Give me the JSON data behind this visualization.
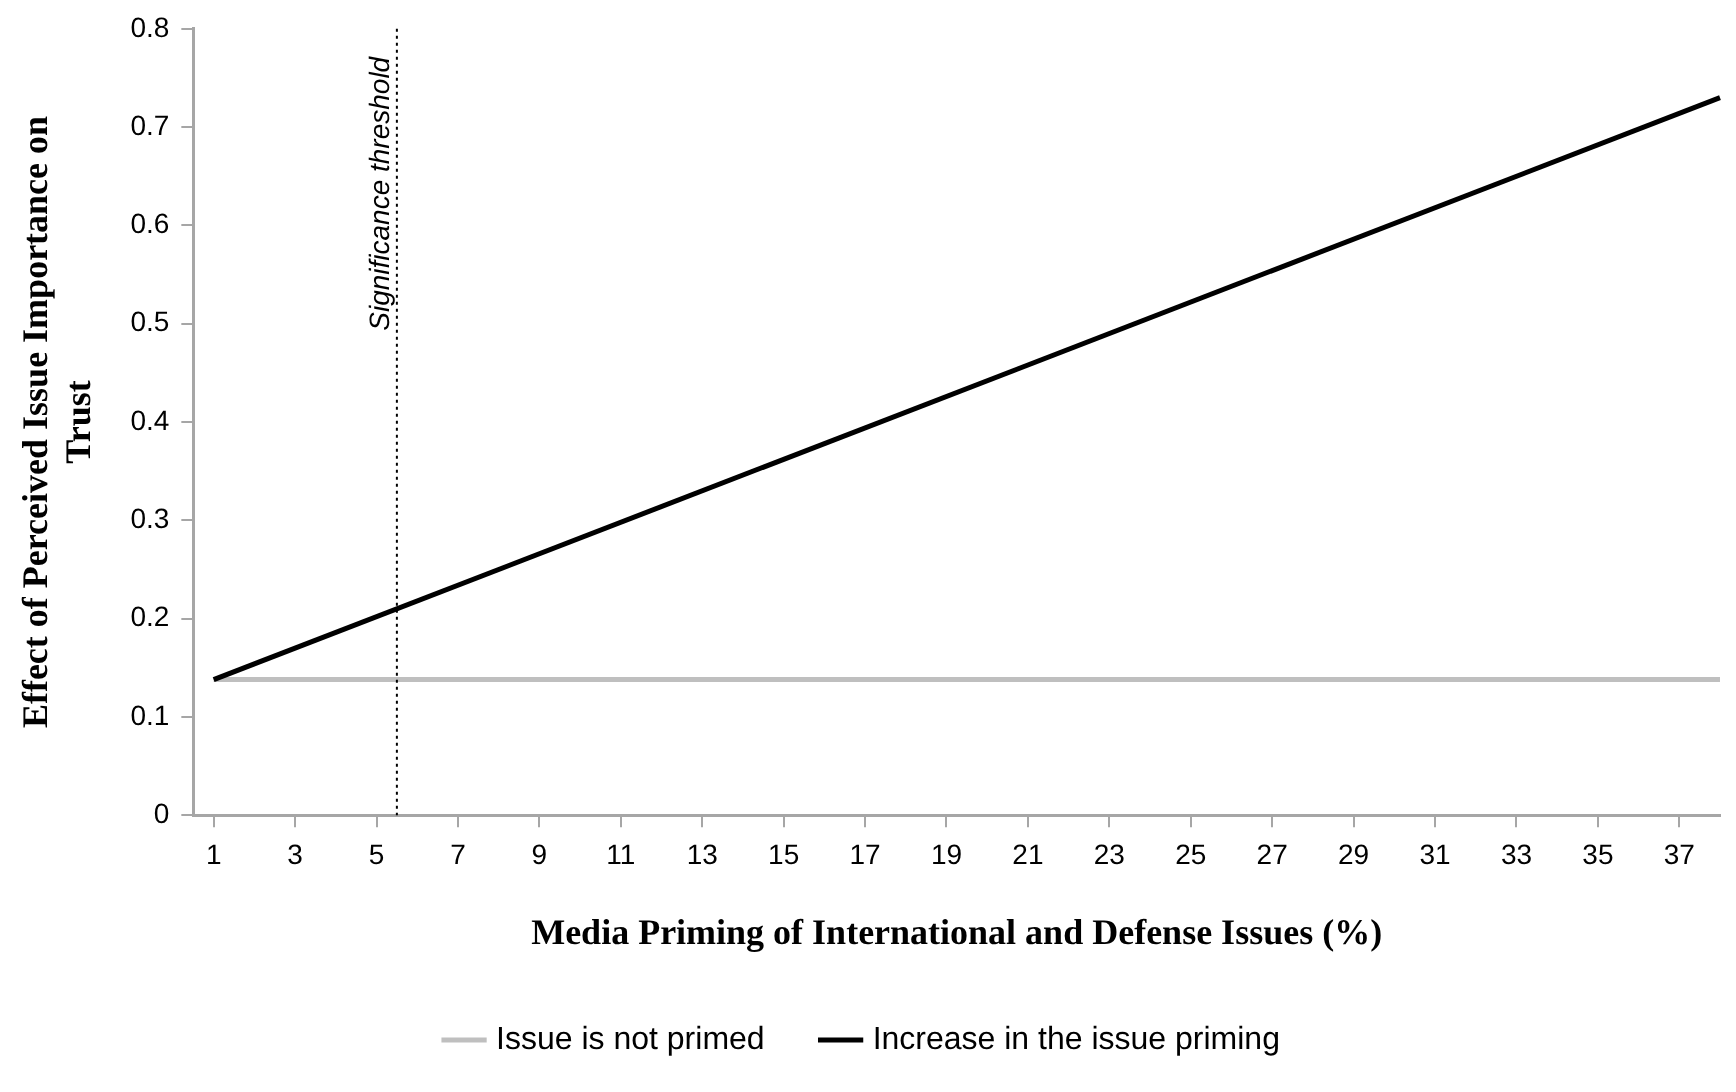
{
  "chart_data": {
    "type": "line",
    "xlabel": "Media Priming of International and Defense Issues (%)",
    "ylabel": "Effect of Perceived Issue Importance on Trust",
    "x": [
      1,
      38
    ],
    "xlim": [
      0.5,
      38
    ],
    "xticks": [
      1,
      3,
      5,
      7,
      9,
      11,
      13,
      15,
      17,
      19,
      21,
      23,
      25,
      27,
      29,
      31,
      33,
      35,
      37
    ],
    "ylim": [
      0,
      0.8
    ],
    "yticks": [
      0,
      0.1,
      0.2,
      0.3,
      0.4,
      0.5,
      0.6,
      0.7,
      0.8
    ],
    "series": [
      {
        "name": "Issue is not primed",
        "color": "#bfbfbf",
        "values": [
          0.138,
          0.138
        ]
      },
      {
        "name": "Increase in the issue priming",
        "color": "#000000",
        "values": [
          0.138,
          0.73
        ]
      }
    ],
    "ref_lines": [
      {
        "axis": "x",
        "value": 5.5,
        "label": "Significance threshold",
        "color": "#000000",
        "line_style": "dotted"
      }
    ],
    "grid": false,
    "legend": "bottom",
    "marker": "none",
    "line_style": "solid"
  }
}
